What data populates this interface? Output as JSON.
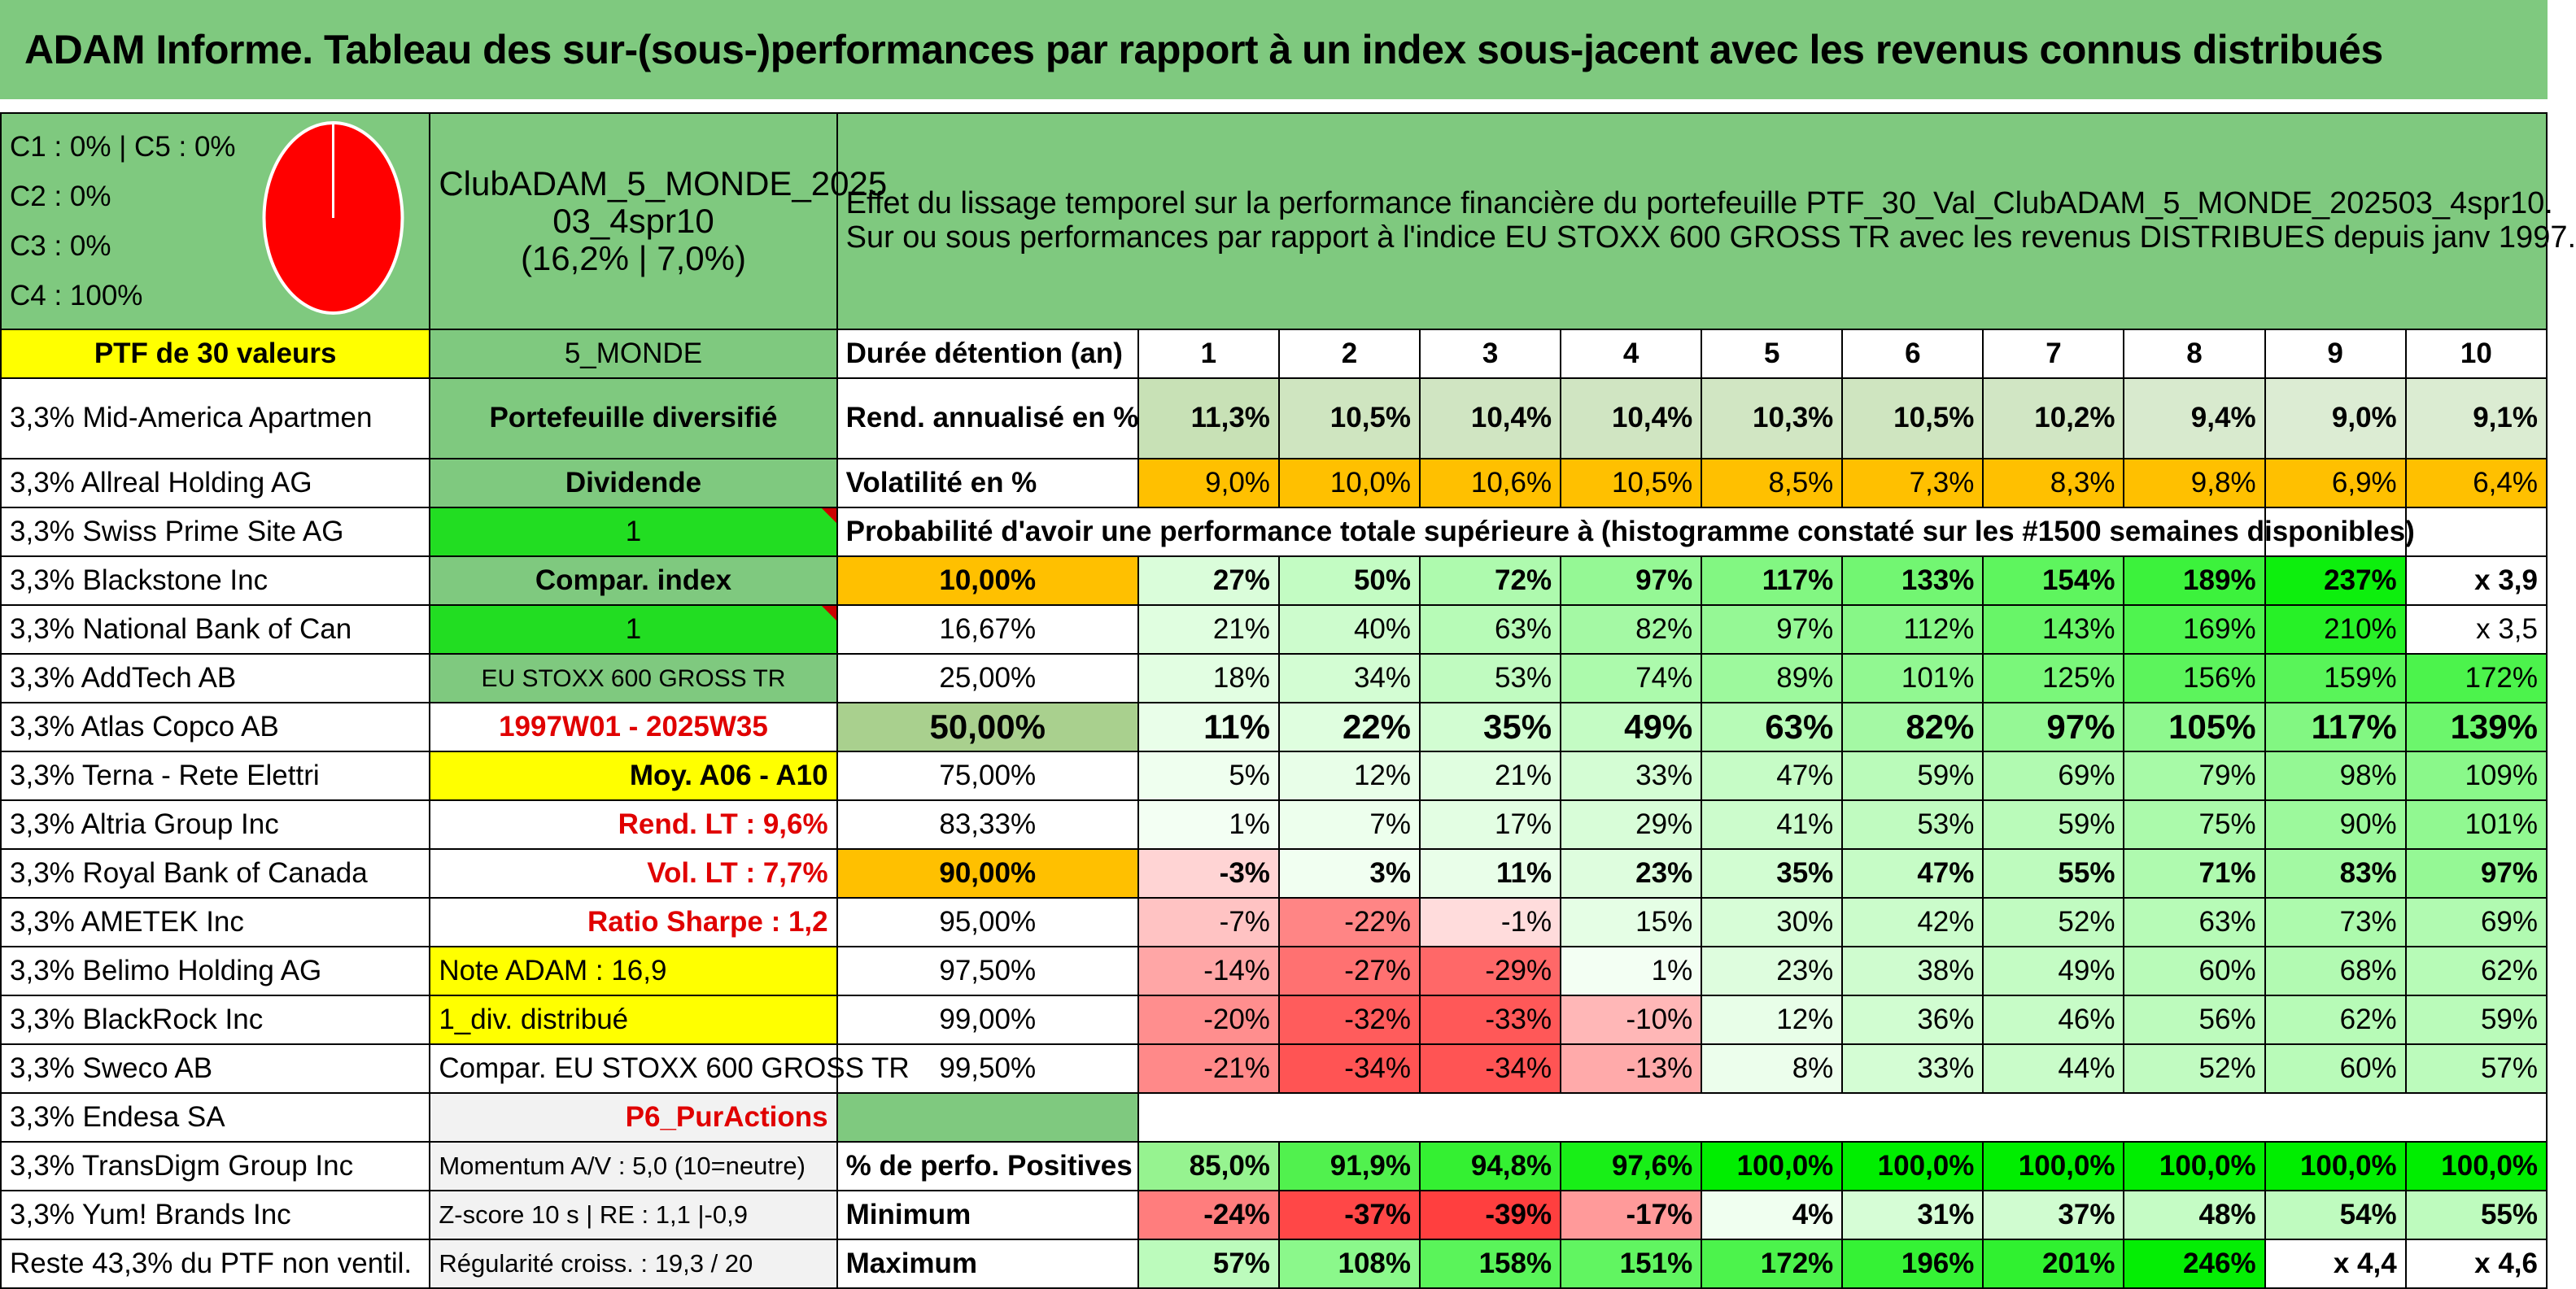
{
  "title": "ADAM Informe. Tableau des sur-(sous-)performances par rapport à un index sous-jacent avec les revenus connus distribués",
  "legend": [
    "C1 : 0% | C5 : 0%",
    "C2 : 0%",
    "C3 : 0%",
    "C4 : 100%"
  ],
  "pie": {
    "color": "#ff0000",
    "c4_fraction": 1.0
  },
  "portfolio": {
    "name_line1": "ClubADAM_5_MONDE_2025",
    "name_line2": "03_4spr10",
    "name_line3": "(16,2% | 7,0%)"
  },
  "effect": {
    "line1": "Effet du lissage temporel sur la performance financière du portefeuille PTF_30_Val_ClubADAM_5_MONDE_202503_4spr10.",
    "line2": "Sur ou sous performances par rapport à l'indice EU STOXX 600 GROSS TR avec les revenus DISTRIBUES depuis janv 1997."
  },
  "holdings_header": "PTF de 30 valeurs",
  "holdings": [
    "3,3% Mid-America Apartmen",
    "3,3% Allreal Holding AG",
    "3,3% Swiss Prime Site AG",
    "3,3% Blackstone Inc",
    "3,3% National Bank of Can",
    "3,3% AddTech AB",
    "3,3% Atlas Copco AB",
    "3,3% Terna - Rete Elettri",
    "3,3% Altria Group Inc",
    "3,3% Royal Bank of Canada",
    "3,3% AMETEK Inc",
    "3,3% Belimo Holding AG",
    "3,3% BlackRock Inc",
    "3,3% Sweco AB",
    "3,3% Endesa SA",
    "3,3% TransDigm Group Inc",
    "3,3% Yum! Brands Inc",
    "Reste 43,3% du PTF non ventil."
  ],
  "info": {
    "region": "5_MONDE",
    "type": "Portefeuille diversifié",
    "dividend_label": "Dividende",
    "dividend_value": "1",
    "compar_label": "Compar. index",
    "compar_value": "1",
    "index_name": "EU STOXX 600 GROSS TR",
    "period": "1997W01 - 2025W35",
    "moy": "Moy. A06 - A10",
    "rend_lt": "Rend. LT : 9,6%",
    "vol_lt": "Vol. LT : 7,7%",
    "sharpe": "Ratio Sharpe : 1,2",
    "note": "Note ADAM : 16,9",
    "div": "1_div. distribué",
    "compar_text": "Compar. EU STOXX 600 GROSS TR",
    "p6": "P6_PurActions",
    "momentum": "Momentum A/V : 5,0 (10=neutre)",
    "zscore": "Z-score 10 s | RE : 1,1 |-0,9",
    "regularite": "Régularité croiss. : 19,3 / 20"
  },
  "duration": {
    "label": "Durée détention (an)",
    "years": [
      "1",
      "2",
      "3",
      "4",
      "5",
      "6",
      "7",
      "8",
      "9",
      "10"
    ]
  },
  "rend": {
    "label": "Rend. annualisé en %",
    "values": [
      "11,3%",
      "10,5%",
      "10,4%",
      "10,4%",
      "10,3%",
      "10,5%",
      "10,2%",
      "9,4%",
      "9,0%",
      "9,1%"
    ]
  },
  "vol": {
    "label": "Volatilité en %",
    "values": [
      "9,0%",
      "10,0%",
      "10,6%",
      "10,5%",
      "8,5%",
      "7,3%",
      "8,3%",
      "9,8%",
      "6,9%",
      "6,4%"
    ]
  },
  "proba_header": "Probabilité d'avoir une performance totale supérieure à (histogramme constaté sur les #1500 semaines disponibles)",
  "probabilities": [
    {
      "p": "10,00%",
      "values": [
        "27%",
        "50%",
        "72%",
        "97%",
        "117%",
        "133%",
        "154%",
        "189%",
        "237%",
        "x 3,9"
      ]
    },
    {
      "p": "16,67%",
      "values": [
        "21%",
        "40%",
        "63%",
        "82%",
        "97%",
        "112%",
        "143%",
        "169%",
        "210%",
        "x 3,5"
      ]
    },
    {
      "p": "25,00%",
      "values": [
        "18%",
        "34%",
        "53%",
        "74%",
        "89%",
        "101%",
        "125%",
        "156%",
        "159%",
        "172%"
      ]
    },
    {
      "p": "50,00%",
      "values": [
        "11%",
        "22%",
        "35%",
        "49%",
        "63%",
        "82%",
        "97%",
        "105%",
        "117%",
        "139%"
      ]
    },
    {
      "p": "75,00%",
      "values": [
        "5%",
        "12%",
        "21%",
        "33%",
        "47%",
        "59%",
        "69%",
        "79%",
        "98%",
        "109%"
      ]
    },
    {
      "p": "83,33%",
      "values": [
        "1%",
        "7%",
        "17%",
        "29%",
        "41%",
        "53%",
        "59%",
        "75%",
        "90%",
        "101%"
      ]
    },
    {
      "p": "90,00%",
      "values": [
        "-3%",
        "3%",
        "11%",
        "23%",
        "35%",
        "47%",
        "55%",
        "71%",
        "83%",
        "97%"
      ]
    },
    {
      "p": "95,00%",
      "values": [
        "-7%",
        "-22%",
        "-1%",
        "15%",
        "30%",
        "42%",
        "52%",
        "63%",
        "73%",
        "69%"
      ]
    },
    {
      "p": "97,50%",
      "values": [
        "-14%",
        "-27%",
        "-29%",
        "1%",
        "23%",
        "38%",
        "49%",
        "60%",
        "68%",
        "62%"
      ]
    },
    {
      "p": "99,00%",
      "values": [
        "-20%",
        "-32%",
        "-33%",
        "-10%",
        "12%",
        "36%",
        "46%",
        "56%",
        "62%",
        "59%"
      ]
    },
    {
      "p": "99,50%",
      "values": [
        "-21%",
        "-34%",
        "-34%",
        "-13%",
        "8%",
        "33%",
        "44%",
        "52%",
        "60%",
        "57%"
      ]
    }
  ],
  "positives": {
    "label": "% de perfo. Positives",
    "values": [
      "85,0%",
      "91,9%",
      "94,8%",
      "97,6%",
      "100,0%",
      "100,0%",
      "100,0%",
      "100,0%",
      "100,0%",
      "100,0%"
    ]
  },
  "minimum": {
    "label": "Minimum",
    "values": [
      "-24%",
      "-37%",
      "-39%",
      "-17%",
      "4%",
      "31%",
      "37%",
      "48%",
      "54%",
      "55%"
    ]
  },
  "maximum": {
    "label": "Maximum",
    "values": [
      "57%",
      "108%",
      "158%",
      "151%",
      "172%",
      "196%",
      "201%",
      "246%",
      "x 4,4",
      "x 4,6"
    ]
  },
  "colors": {
    "header_green": "#7fc97f",
    "highlight_yellow": "#ffff00",
    "bright_green": "#22dd22",
    "orange": "#ffc000",
    "rend_green": "#c6e0b4",
    "positive_max_green": "#00ee00",
    "negative_max_red": "#ff3b3b"
  }
}
